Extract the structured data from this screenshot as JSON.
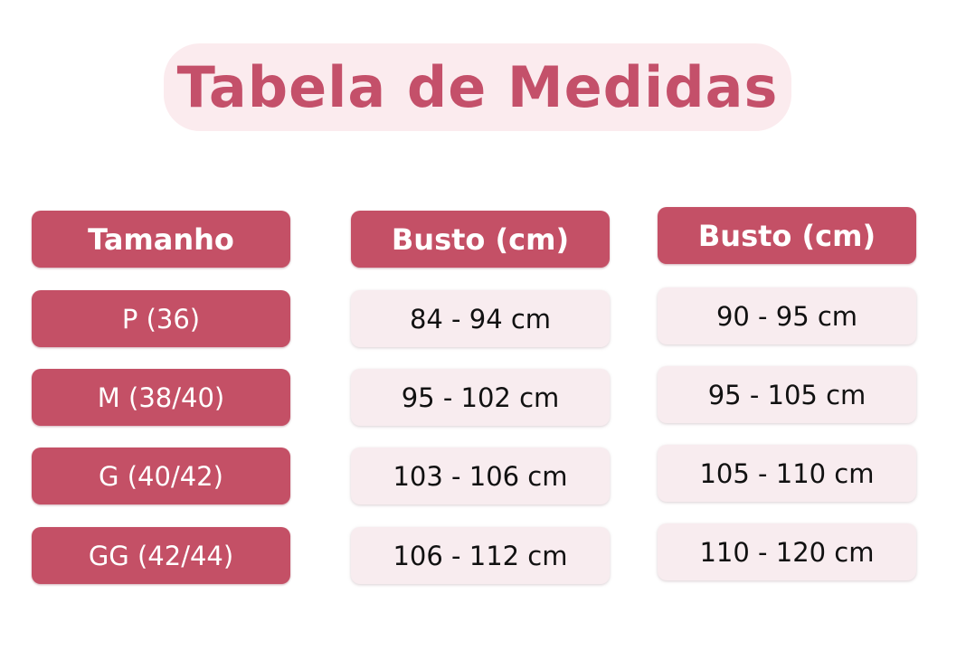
{
  "title": "Tabela de Medidas",
  "colors": {
    "accent": "#c45066",
    "title_bg": "#fbebee",
    "cell_bg": "#f8ecef"
  },
  "columns": [
    {
      "header": "Tamanho",
      "values": [
        "P (36)",
        "M (38/40)",
        "G (40/42)",
        "GG (42/44)"
      ]
    },
    {
      "header": "Busto (cm)",
      "values": [
        "84 - 94 cm",
        "95 - 102 cm",
        "103 - 106 cm",
        "106 - 112 cm"
      ]
    },
    {
      "header": "Busto (cm)",
      "values": [
        "90 - 95 cm",
        "95 - 105 cm",
        "105 - 110 cm",
        "110 - 120 cm"
      ]
    }
  ]
}
